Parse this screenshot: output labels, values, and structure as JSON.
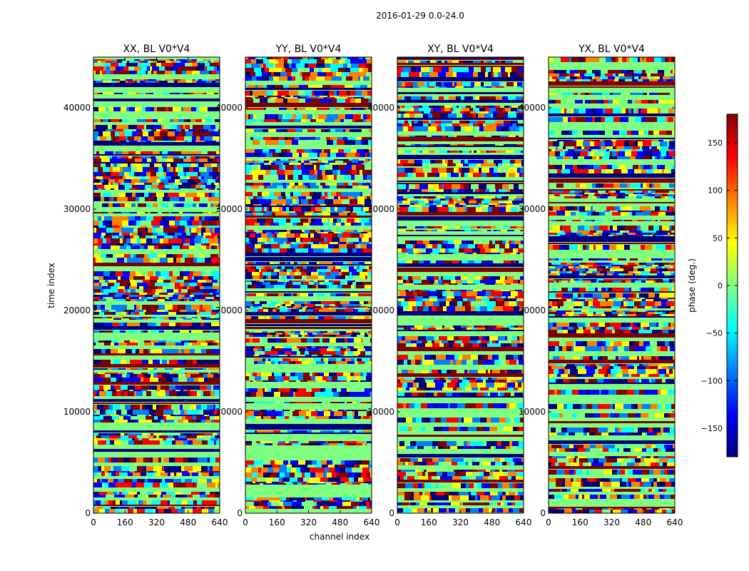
{
  "figure": {
    "suptitle": "2016-01-29 0.0-24.0"
  },
  "colors": {
    "jet": [
      "#00007f",
      "#0000ff",
      "#007fff",
      "#00ffff",
      "#7fff7f",
      "#ffff00",
      "#ff7f00",
      "#ff0000",
      "#7f0000"
    ],
    "frame": "#000000"
  },
  "chart_data": [
    {
      "type": "heatmap",
      "title": "XX, BL V0*V4",
      "xlabel": "",
      "ylabel": "time index",
      "xlim": [
        0,
        640
      ],
      "ylim": [
        0,
        45000
      ],
      "xticks": [
        0,
        160,
        320,
        480,
        640
      ],
      "yticks": [
        0,
        10000,
        20000,
        30000,
        40000
      ],
      "xtick_labels": [
        "0",
        "160",
        "320",
        "480",
        "640"
      ],
      "ytick_labels": [
        "0",
        "10000",
        "20000",
        "30000",
        "40000"
      ],
      "cmap": "jet",
      "clim": [
        -180,
        180
      ]
    },
    {
      "type": "heatmap",
      "title": "YY, BL V0*V4",
      "xlabel": "channel index",
      "ylabel": "",
      "xlim": [
        0,
        640
      ],
      "ylim": [
        0,
        45000
      ],
      "xticks": [
        0,
        160,
        320,
        480,
        640
      ],
      "yticks": [
        0,
        10000,
        20000,
        30000,
        40000
      ],
      "xtick_labels": [
        "0",
        "160",
        "320",
        "480",
        "640"
      ],
      "ytick_labels": [
        "0",
        "10000",
        "20000",
        "30000",
        "40000"
      ],
      "cmap": "jet",
      "clim": [
        -180,
        180
      ]
    },
    {
      "type": "heatmap",
      "title": "XY, BL V0*V4",
      "xlabel": "",
      "ylabel": "",
      "xlim": [
        0,
        640
      ],
      "ylim": [
        0,
        45000
      ],
      "xticks": [
        0,
        160,
        320,
        480,
        640
      ],
      "yticks": [
        0,
        10000,
        20000,
        30000,
        40000
      ],
      "xtick_labels": [
        "0",
        "160",
        "320",
        "480",
        "640"
      ],
      "ytick_labels": [
        "0",
        "10000",
        "20000",
        "30000",
        "40000"
      ],
      "cmap": "jet",
      "clim": [
        -180,
        180
      ]
    },
    {
      "type": "heatmap",
      "title": "YX, BL V0*V4",
      "xlabel": "",
      "ylabel": "",
      "xlim": [
        0,
        640
      ],
      "ylim": [
        0,
        45000
      ],
      "xticks": [
        0,
        160,
        320,
        480,
        640
      ],
      "yticks": [
        0,
        10000,
        20000,
        30000,
        40000
      ],
      "xtick_labels": [
        "0",
        "160",
        "320",
        "480",
        "640"
      ],
      "ytick_labels": [
        "0",
        "10000",
        "20000",
        "30000",
        "40000"
      ],
      "cmap": "jet",
      "clim": [
        -180,
        180
      ]
    }
  ],
  "colorbar": {
    "label": "phase (deg.)",
    "range": [
      -180,
      180
    ],
    "ticks": [
      -150,
      -100,
      -50,
      0,
      50,
      100,
      150
    ],
    "tick_labels": [
      "−150",
      "−100",
      "−50",
      "0",
      "50",
      "100",
      "150"
    ]
  }
}
